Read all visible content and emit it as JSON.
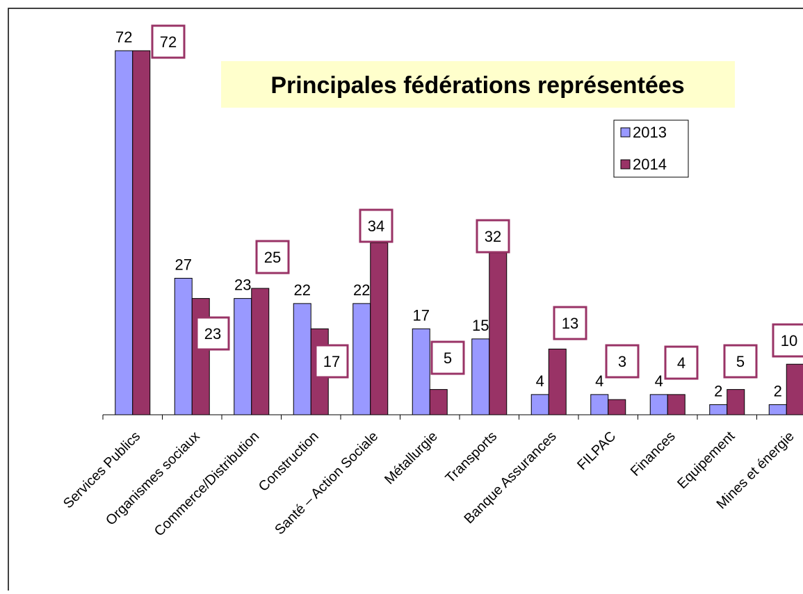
{
  "chart_data": {
    "type": "bar",
    "title": "Principales fédérations représentées",
    "categories": [
      "Services Publics",
      "Organismes sociaux",
      "Commerce/Distribution",
      "Construction",
      "Santé – Action Sociale",
      "Métallurgie",
      "Transports",
      "Banque Assurances",
      "FILPAC",
      "Finances",
      "Equipement",
      "Mines et énergie"
    ],
    "series": [
      {
        "name": "2013",
        "color": "#9999ff",
        "values": [
          72,
          27,
          23,
          22,
          22,
          17,
          15,
          4,
          4,
          4,
          2,
          2
        ]
      },
      {
        "name": "2014",
        "color": "#993366",
        "values": [
          72,
          23,
          25,
          17,
          34,
          5,
          32,
          13,
          3,
          4,
          5,
          10
        ]
      }
    ]
  }
}
